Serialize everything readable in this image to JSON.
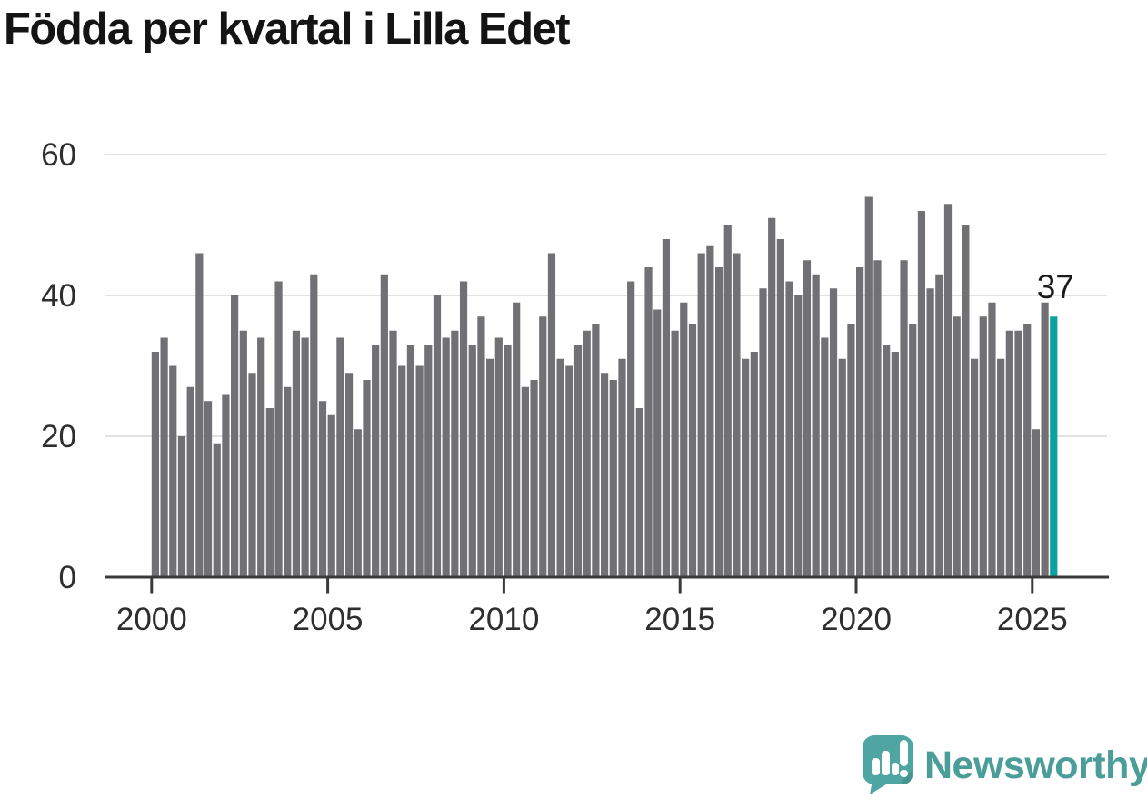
{
  "title": "Födda per kvartal i Lilla Edet",
  "chart_data": {
    "type": "bar",
    "title": "Födda per kvartal i Lilla Edet",
    "x_unit": "quarter",
    "start_year": 2000,
    "start_quarter": 1,
    "end_year": 2025,
    "end_quarter": 3,
    "values": [
      32,
      34,
      30,
      20,
      27,
      46,
      25,
      19,
      26,
      40,
      35,
      29,
      34,
      24,
      42,
      27,
      35,
      34,
      43,
      25,
      23,
      34,
      29,
      21,
      28,
      33,
      43,
      35,
      30,
      33,
      30,
      33,
      40,
      34,
      35,
      42,
      33,
      37,
      31,
      34,
      33,
      39,
      27,
      28,
      37,
      46,
      31,
      30,
      33,
      35,
      36,
      29,
      28,
      31,
      42,
      24,
      44,
      38,
      48,
      35,
      39,
      36,
      46,
      47,
      44,
      50,
      46,
      31,
      32,
      41,
      51,
      48,
      42,
      40,
      45,
      43,
      34,
      41,
      31,
      36,
      44,
      54,
      45,
      33,
      32,
      45,
      36,
      52,
      41,
      43,
      53,
      37,
      50,
      31,
      37,
      39,
      31,
      35,
      35,
      36,
      21,
      39,
      37
    ],
    "highlight_last": true,
    "last_value_label": "37",
    "yticks": [
      0,
      20,
      40,
      60
    ],
    "xticks": [
      2000,
      2005,
      2010,
      2015,
      2020,
      2025
    ],
    "ylim": [
      0,
      60
    ],
    "grid": "horizontal",
    "legend": "none",
    "bar_color": "#707075",
    "highlight_color": "#0ca1a1",
    "grid_color": "#e2e2e2",
    "axis_color": "#3a3a3a",
    "tick_label_color": "#2e2e2e",
    "value_label_color": "#1b1b1b"
  },
  "footer": {
    "brand": "Newsworthy"
  }
}
